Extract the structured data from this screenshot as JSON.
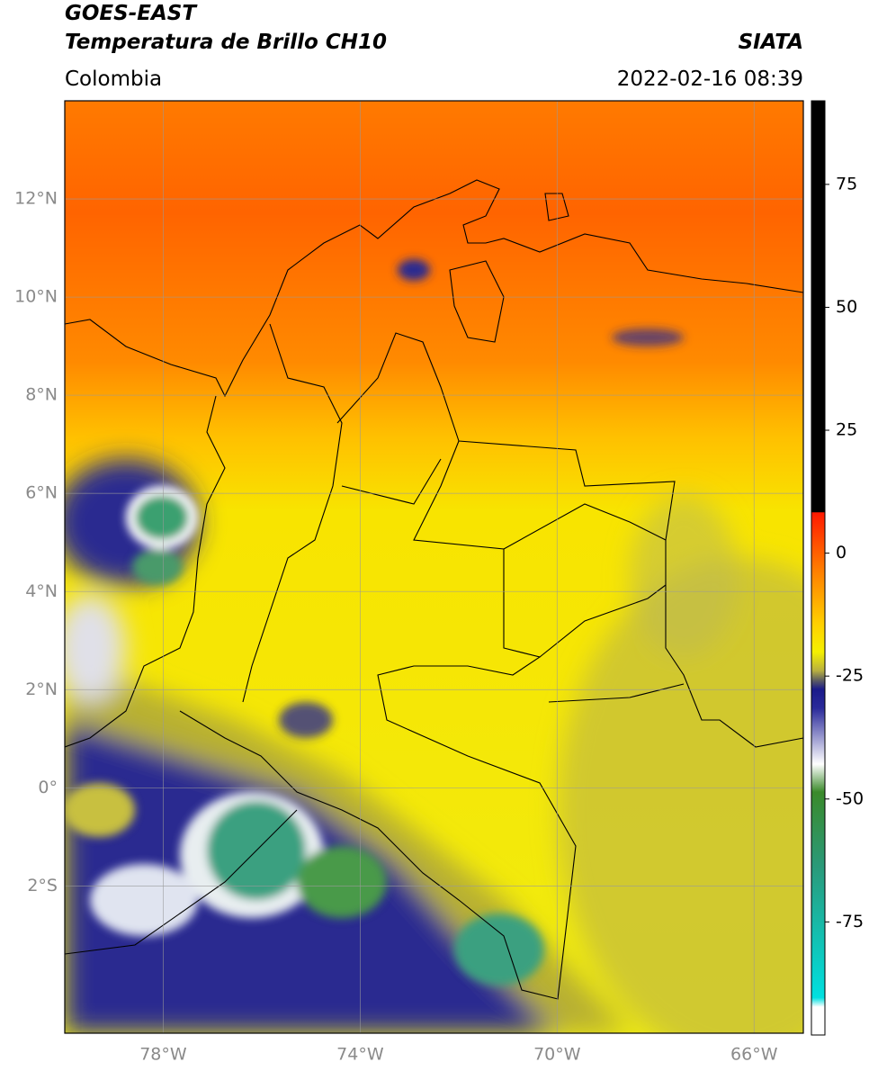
{
  "header": {
    "title": "GOES-EAST",
    "subtitle": "Temperatura de Brillo CH10",
    "source": "SIATA",
    "region": "Colombia",
    "datetime": "2022-02-16 08:39"
  },
  "map": {
    "lon_range": [
      -80,
      -65
    ],
    "lat_range": [
      -5,
      14
    ],
    "lon_ticks": [
      {
        "value": -78,
        "label": "78°W"
      },
      {
        "value": -74,
        "label": "74°W"
      },
      {
        "value": -70,
        "label": "70°W"
      },
      {
        "value": -66,
        "label": "66°W"
      }
    ],
    "lat_ticks": [
      {
        "value": 12,
        "label": "12°N"
      },
      {
        "value": 10,
        "label": "10°N"
      },
      {
        "value": 8,
        "label": "8°N"
      },
      {
        "value": 6,
        "label": "6°N"
      },
      {
        "value": 4,
        "label": "4°N"
      },
      {
        "value": 2,
        "label": "2°N"
      },
      {
        "value": 0,
        "label": "0°"
      },
      {
        "value": -2,
        "label": "2°S"
      }
    ]
  },
  "colorbar": {
    "range": [
      -98,
      92
    ],
    "ticks": [
      75,
      50,
      25,
      0,
      -25,
      -50,
      -75
    ]
  }
}
